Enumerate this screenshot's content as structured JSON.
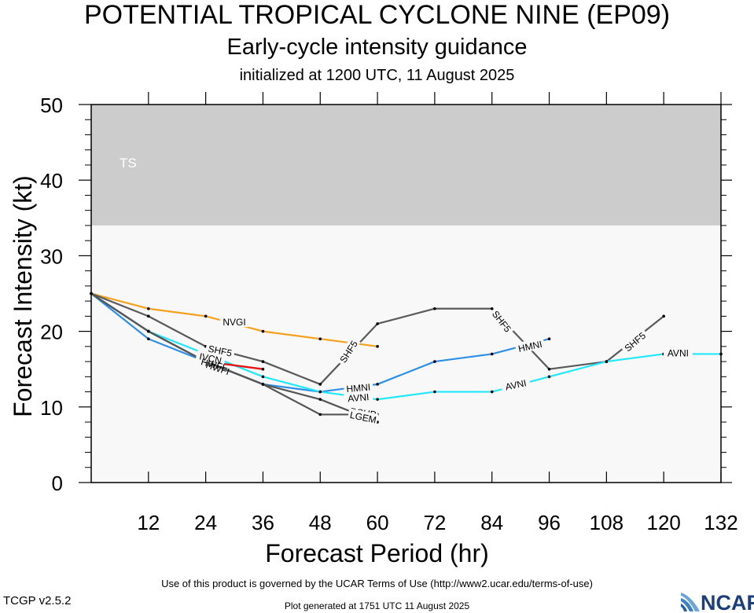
{
  "header": {
    "title": "POTENTIAL TROPICAL CYCLONE NINE (EP09)",
    "subtitle": "Early-cycle intensity guidance",
    "init": "initialized at 1200 UTC, 11 August 2025"
  },
  "footer": {
    "terms": "Use of this product is governed by the UCAR Terms of Use (http://www2.ucar.edu/terms-of-use)",
    "version": "TCGP v2.5.2",
    "generated": "Plot generated at 1751 UTC   11 August 2025",
    "logo_text": "NCAR"
  },
  "chart_data": {
    "type": "line",
    "title": "POTENTIAL TROPICAL CYCLONE NINE (EP09)",
    "xlabel": "Forecast Period (hr)",
    "ylabel": "Forecast Intensity (kt)",
    "xlim": [
      0,
      132
    ],
    "ylim": [
      0,
      50
    ],
    "xticks": [
      12,
      24,
      36,
      48,
      60,
      72,
      84,
      96,
      108,
      120,
      132
    ],
    "yticks": [
      0,
      10,
      20,
      30,
      40,
      50
    ],
    "bands": [
      {
        "label": "TS",
        "from": 34,
        "to": 50,
        "color": "#cccccc"
      },
      {
        "label": "",
        "from": 0,
        "to": 34,
        "color": "#f8f8f8"
      }
    ],
    "series": [
      {
        "name": "NVGI",
        "color": "#f5a11c",
        "x": [
          0,
          12,
          24,
          36,
          48,
          60
        ],
        "y": [
          25,
          23,
          22,
          20,
          19,
          18
        ],
        "labels": [
          {
            "x": 30,
            "y": 21.2
          }
        ]
      },
      {
        "name": "SHF5",
        "color": "#5a5a5a",
        "x": [
          0,
          12,
          24,
          36,
          48,
          60,
          72,
          84,
          96,
          108,
          120
        ],
        "y": [
          25,
          22,
          18,
          16,
          13,
          21,
          23,
          23,
          15,
          16,
          22
        ],
        "labels": [
          {
            "x": 27,
            "y": 17.4,
            "rot": 12
          },
          {
            "x": 54,
            "y": 17.3,
            "rot": -57
          },
          {
            "x": 86,
            "y": 21.3,
            "rot": 52
          },
          {
            "x": 114,
            "y": 18.6,
            "rot": -40
          }
        ]
      },
      {
        "name": "HMNI",
        "color": "#2d8fe8",
        "x": [
          0,
          12,
          24,
          36,
          48,
          60,
          72,
          84,
          96
        ],
        "y": [
          25,
          19,
          16,
          13,
          12,
          13,
          16,
          17,
          19
        ],
        "labels": [
          {
            "x": 56,
            "y": 12.5,
            "rot": -5
          },
          {
            "x": 92,
            "y": 18,
            "rot": -12
          }
        ]
      },
      {
        "name": "AVNI",
        "color": "#20e8ff",
        "x": [
          0,
          12,
          24,
          36,
          48,
          60,
          72,
          84,
          96,
          108,
          120,
          132
        ],
        "y": [
          25,
          20,
          17,
          14,
          12,
          11,
          12,
          12,
          14,
          16,
          17,
          17
        ],
        "labels": [
          {
            "x": 56,
            "y": 11.2,
            "rot": -5
          },
          {
            "x": 89,
            "y": 12.9,
            "rot": -12
          },
          {
            "x": 123,
            "y": 17.1,
            "rot": 0
          }
        ]
      },
      {
        "name": "DSHP",
        "color": "#555555",
        "x": [
          0,
          12,
          24,
          36,
          48,
          60
        ],
        "y": [
          25,
          20,
          16,
          13,
          9,
          9
        ],
        "labels": [
          {
            "x": 57,
            "y": 9.2,
            "rot": 8
          }
        ]
      },
      {
        "name": "LGEM",
        "color": "#555555",
        "x": [
          0,
          12,
          24,
          36,
          48,
          60
        ],
        "y": [
          25,
          20,
          16,
          13,
          11,
          8
        ],
        "labels": [
          {
            "x": 57,
            "y": 8.6,
            "rot": 12
          }
        ]
      },
      {
        "name": "IVCN",
        "color": "#e81515",
        "x": [
          24,
          36
        ],
        "y": [
          16,
          15
        ],
        "labels": [
          {
            "x": 25,
            "y": 16.4,
            "rot": 12
          }
        ]
      }
    ],
    "clutter_labels": [
      {
        "text": "HWFI",
        "x": 25.5,
        "y": 15.6,
        "rot": 15
      },
      {
        "text": "HWFI",
        "x": 26.5,
        "y": 15.1,
        "rot": 18
      }
    ]
  }
}
